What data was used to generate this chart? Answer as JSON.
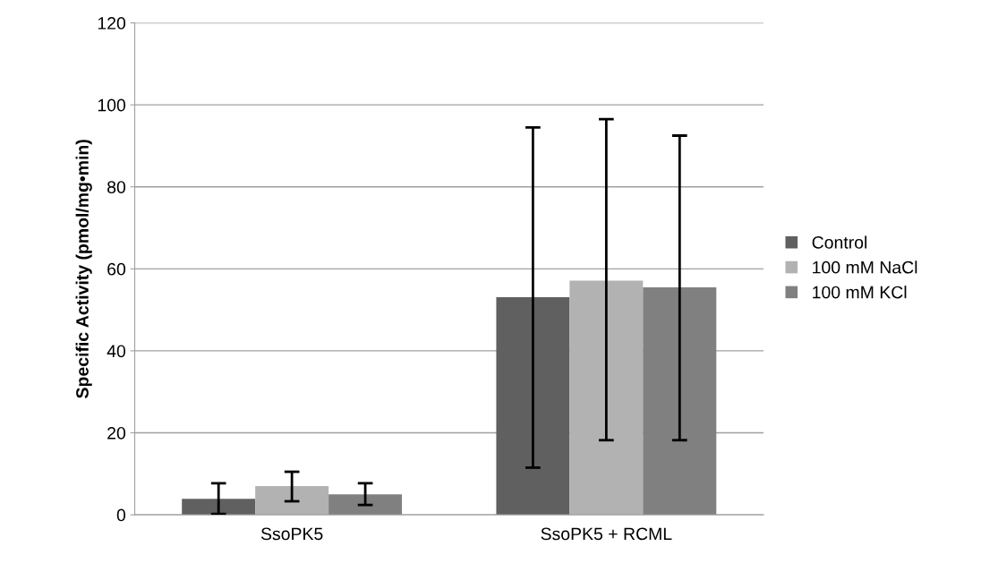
{
  "chart_data": {
    "type": "bar",
    "ylabel": "Specific Activity (pmol/mg•min)",
    "categories": [
      "SsoPK5",
      "SsoPK5 + RCML"
    ],
    "series": [
      {
        "name": "Control",
        "color": "#606060",
        "values": [
          3.9,
          53.1
        ],
        "errors": [
          [
            0.2,
            7.7
          ],
          [
            11.5,
            94.5
          ]
        ]
      },
      {
        "name": "100 mM NaCl",
        "color": "#b2b2b2",
        "values": [
          7.0,
          57.1
        ],
        "errors": [
          [
            3.3,
            10.5
          ],
          [
            18.2,
            96.5
          ]
        ]
      },
      {
        "name": "100 mM KCl",
        "color": "#808080",
        "values": [
          5.0,
          55.5
        ],
        "errors": [
          [
            2.4,
            7.7
          ],
          [
            18.2,
            92.5
          ]
        ]
      }
    ],
    "ylim": [
      0,
      120
    ],
    "yticks": [
      0,
      20,
      40,
      60,
      80,
      100,
      120
    ],
    "grid": "y",
    "legend": "right"
  }
}
